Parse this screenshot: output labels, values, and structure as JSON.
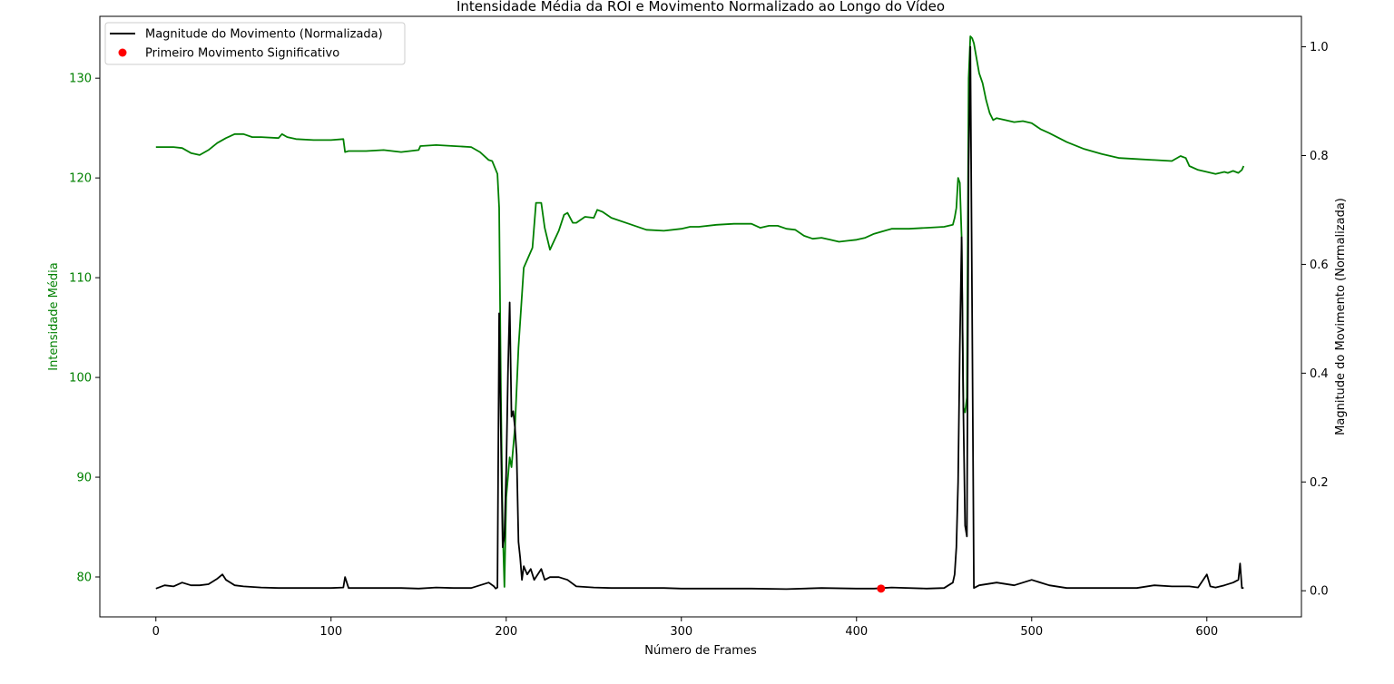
{
  "chart_data": {
    "type": "line",
    "title": "Intensidade Média da ROI e Movimento Normalizado ao Longo do Vídeo",
    "xlabel": "Número de Frames",
    "ylabel_left": "Intensidade Média",
    "ylabel_right": "Magnitude do Movimento (Normalizada)",
    "xlim": [
      -32,
      654
    ],
    "ylim_left": [
      76,
      136.2
    ],
    "ylim_right": [
      -0.048,
      1.056
    ],
    "x_ticks": [
      "0",
      "100",
      "200",
      "300",
      "400",
      "500",
      "600"
    ],
    "y_ticks_left": [
      "80",
      "90",
      "100",
      "110",
      "120",
      "130"
    ],
    "y_ticks_right": [
      "0.0",
      "0.2",
      "0.4",
      "0.6",
      "0.8",
      "1.0"
    ],
    "grid": false,
    "legend_position": "top-left",
    "legend": [
      "Magnitude do Movimento (Normalizada)",
      "Primeiro Movimento Significativo"
    ],
    "colors": {
      "intensity": "#008000",
      "motion": "#000000",
      "marker": "#ff0000",
      "left_axis_text": "#008000"
    },
    "series": [
      {
        "axis": "left",
        "color": "#008000",
        "x": [
          0,
          10,
          15,
          20,
          25,
          30,
          35,
          40,
          45,
          50,
          55,
          60,
          70,
          72,
          75,
          80,
          90,
          100,
          107,
          108,
          110,
          120,
          130,
          140,
          150,
          151,
          160,
          170,
          180,
          185,
          190,
          192,
          195,
          196,
          197,
          198,
          199,
          200,
          202,
          203,
          205,
          207,
          210,
          215,
          217,
          220,
          222,
          225,
          230,
          233,
          235,
          238,
          240,
          245,
          250,
          252,
          255,
          260,
          270,
          280,
          290,
          300,
          305,
          310,
          320,
          330,
          340,
          345,
          350,
          355,
          360,
          365,
          370,
          375,
          380,
          385,
          390,
          395,
          400,
          405,
          410,
          420,
          430,
          440,
          450,
          455,
          456,
          457,
          458,
          459,
          460,
          461,
          462,
          463,
          464,
          465,
          466,
          467,
          470,
          472,
          474,
          476,
          478,
          480,
          485,
          490,
          495,
          500,
          505,
          510,
          520,
          530,
          540,
          550,
          560,
          570,
          580,
          585,
          588,
          590,
          595,
          600,
          605,
          610,
          612,
          615,
          618,
          620,
          621
        ],
        "y": [
          123.1,
          123.1,
          123.0,
          122.5,
          122.3,
          122.8,
          123.5,
          124.0,
          124.4,
          124.4,
          124.1,
          124.1,
          124.0,
          124.4,
          124.1,
          123.9,
          123.8,
          123.8,
          123.9,
          122.6,
          122.7,
          122.7,
          122.8,
          122.6,
          122.8,
          123.2,
          123.3,
          123.2,
          123.1,
          122.6,
          121.8,
          121.7,
          120.4,
          117.0,
          98.0,
          85.0,
          79.0,
          88.0,
          92.0,
          91.0,
          95.0,
          103.0,
          111.0,
          113.0,
          117.5,
          117.5,
          115.0,
          112.8,
          114.7,
          116.3,
          116.5,
          115.5,
          115.5,
          116.1,
          116.0,
          116.8,
          116.6,
          116.0,
          115.4,
          114.8,
          114.7,
          114.9,
          115.1,
          115.1,
          115.3,
          115.4,
          115.4,
          115.0,
          115.2,
          115.2,
          114.9,
          114.8,
          114.2,
          113.9,
          114.0,
          113.8,
          113.6,
          113.7,
          113.8,
          114.0,
          114.4,
          114.9,
          114.9,
          115.0,
          115.1,
          115.3,
          116.0,
          117.0,
          120.0,
          119.5,
          114.0,
          97.0,
          96.5,
          98.0,
          130.0,
          134.2,
          134.0,
          133.5,
          130.5,
          129.5,
          127.8,
          126.5,
          125.8,
          126.0,
          125.8,
          125.6,
          125.7,
          125.5,
          124.9,
          124.5,
          123.6,
          122.9,
          122.4,
          122.0,
          121.9,
          121.8,
          121.7,
          122.2,
          122.0,
          121.2,
          120.8,
          120.6,
          120.4,
          120.6,
          120.5,
          120.7,
          120.5,
          120.8,
          121.2
        ]
      },
      {
        "name": "Magnitude do Movimento (Normalizada)",
        "axis": "right",
        "color": "#000000",
        "x": [
          0,
          5,
          10,
          15,
          20,
          25,
          30,
          35,
          38,
          40,
          45,
          50,
          60,
          70,
          80,
          90,
          100,
          107,
          108,
          110,
          120,
          130,
          140,
          150,
          160,
          170,
          180,
          185,
          190,
          193,
          194,
          195,
          196,
          197,
          198,
          199,
          200,
          201,
          202,
          203,
          204,
          205,
          206,
          207,
          208,
          209,
          210,
          212,
          214,
          216,
          218,
          220,
          222,
          225,
          230,
          235,
          240,
          250,
          260,
          270,
          280,
          290,
          300,
          320,
          340,
          360,
          380,
          400,
          410,
          420,
          440,
          450,
          455,
          456,
          457,
          458,
          459,
          460,
          461,
          462,
          463,
          464,
          465,
          466,
          467,
          470,
          480,
          490,
          500,
          510,
          520,
          540,
          560,
          570,
          580,
          590,
          595,
          600,
          602,
          605,
          610,
          615,
          618,
          619,
          620,
          621
        ],
        "y": [
          0.004,
          0.01,
          0.008,
          0.015,
          0.01,
          0.01,
          0.012,
          0.022,
          0.03,
          0.02,
          0.01,
          0.008,
          0.006,
          0.005,
          0.005,
          0.005,
          0.005,
          0.006,
          0.025,
          0.005,
          0.005,
          0.005,
          0.005,
          0.004,
          0.006,
          0.005,
          0.005,
          0.01,
          0.015,
          0.008,
          0.004,
          0.006,
          0.51,
          0.28,
          0.08,
          0.1,
          0.22,
          0.4,
          0.53,
          0.32,
          0.33,
          0.3,
          0.25,
          0.09,
          0.06,
          0.02,
          0.045,
          0.03,
          0.04,
          0.02,
          0.03,
          0.04,
          0.02,
          0.025,
          0.025,
          0.02,
          0.008,
          0.006,
          0.005,
          0.005,
          0.005,
          0.005,
          0.004,
          0.004,
          0.004,
          0.003,
          0.005,
          0.004,
          0.004,
          0.006,
          0.004,
          0.005,
          0.015,
          0.03,
          0.08,
          0.2,
          0.45,
          0.65,
          0.33,
          0.12,
          0.1,
          0.78,
          1.0,
          0.5,
          0.005,
          0.01,
          0.015,
          0.01,
          0.02,
          0.01,
          0.005,
          0.005,
          0.005,
          0.01,
          0.008,
          0.008,
          0.006,
          0.03,
          0.008,
          0.006,
          0.01,
          0.015,
          0.02,
          0.05,
          0.005,
          0.005
        ]
      }
    ],
    "marker": {
      "name": "Primeiro Movimento Significativo",
      "axis": "right",
      "color": "#ff0000",
      "x": 414,
      "y": 0.004
    }
  }
}
